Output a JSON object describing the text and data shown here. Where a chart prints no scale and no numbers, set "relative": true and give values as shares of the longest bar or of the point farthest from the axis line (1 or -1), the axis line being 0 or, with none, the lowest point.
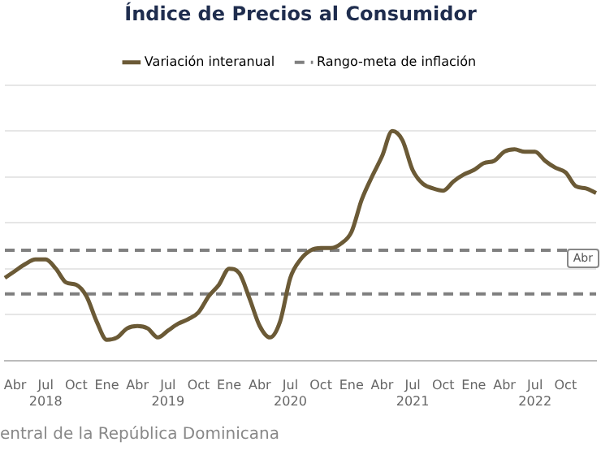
{
  "chart_data": {
    "type": "line",
    "title": "Índice de Precios al Consumidor",
    "relative": true,
    "legend": "top",
    "grid": "y",
    "marker": "none",
    "line_style": "solid",
    "categories": [
      null,
      "Abr",
      null,
      null,
      "Jul\n2018",
      null,
      null,
      "Oct",
      null,
      null,
      "Ene",
      null,
      null,
      "Abr",
      null,
      null,
      "Jul\n2019",
      null,
      null,
      "Oct",
      null,
      null,
      "Ene",
      null,
      null,
      "Abr",
      null,
      null,
      "Jul\n2020",
      null,
      null,
      "Oct",
      null,
      null,
      "Ene",
      null,
      null,
      "Abr",
      null,
      null,
      "Jul\n2021",
      null,
      null,
      "Oct",
      null,
      null,
      "Ene",
      null,
      null,
      "Abr",
      null,
      null,
      "Jul\n2022",
      null,
      null,
      "Oct",
      null,
      null,
      null
    ],
    "series": [
      {
        "name": "Variación interanual",
        "color": "#6b5a36",
        "values": [
          0.36,
          0.39,
          0.42,
          0.44,
          0.44,
          0.4,
          0.34,
          0.33,
          0.28,
          0.17,
          0.09,
          0.1,
          0.14,
          0.15,
          0.14,
          0.1,
          0.13,
          0.16,
          0.18,
          0.21,
          0.28,
          0.33,
          0.4,
          0.38,
          0.27,
          0.15,
          0.1,
          0.17,
          0.36,
          0.44,
          0.48,
          0.49,
          0.49,
          0.51,
          0.56,
          0.7,
          0.8,
          0.89,
          1,
          0.96,
          0.83,
          0.77,
          0.75,
          0.74,
          0.78,
          0.81,
          0.83,
          0.86,
          0.87,
          0.91,
          0.92,
          0.91,
          0.91,
          0.87,
          0.84,
          0.82,
          0.76,
          0.75,
          0.73
        ]
      }
    ],
    "ref_lines": [
      {
        "axis": "y",
        "value": 0.48,
        "label": "Rango-meta de inflación",
        "color": "#808080",
        "line_style": "dashed"
      },
      {
        "axis": "y",
        "value": 0.29,
        "label": null,
        "color": "#808080",
        "line_style": "dashed"
      }
    ],
    "annotations": [
      "entral de la República Dominicana",
      "Abr"
    ]
  }
}
